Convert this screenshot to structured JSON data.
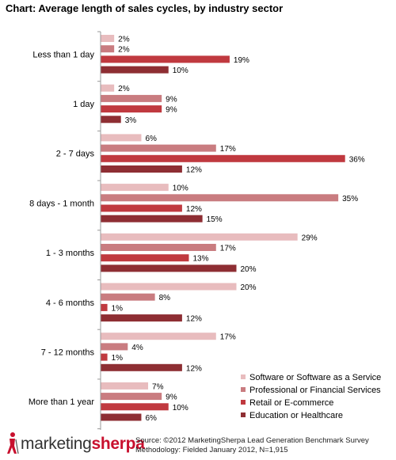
{
  "chart_data": {
    "type": "bar",
    "orientation": "horizontal",
    "title": "Chart: Average length of sales cycles, by industry sector",
    "categories": [
      "Less than 1 day",
      "1 day",
      "2 - 7 days",
      "8 days - 1 month",
      "1 - 3 months",
      "4 - 6 months",
      "7 - 12 months",
      "More than 1 year"
    ],
    "series": [
      {
        "name": "Software or Software as a Service",
        "color": "#e8bcbe",
        "values": [
          2,
          2,
          6,
          10,
          29,
          20,
          17,
          7
        ]
      },
      {
        "name": "Professional or Financial Services",
        "color": "#c97c80",
        "values": [
          2,
          9,
          17,
          35,
          17,
          8,
          4,
          9
        ]
      },
      {
        "name": "Retail or E-commerce",
        "color": "#c0393f",
        "values": [
          19,
          9,
          36,
          12,
          13,
          1,
          1,
          10
        ]
      },
      {
        "name": "Education or Healthcare",
        "color": "#8e2e33",
        "values": [
          10,
          3,
          12,
          15,
          20,
          12,
          12,
          6
        ]
      }
    ],
    "value_suffix": "%",
    "xlim": [
      0,
      40
    ],
    "grid": false,
    "legend": "bottom-right"
  },
  "source": {
    "line1": "Source: ©2012 MarketingSherpa Lead Generation Benchmark Survey",
    "line2": "Methodology: Fielded January 2012, N=1,915"
  },
  "logo": {
    "text_part1": "marketing",
    "text_part2": "sherpa",
    "accent_color": "#c8102e"
  }
}
